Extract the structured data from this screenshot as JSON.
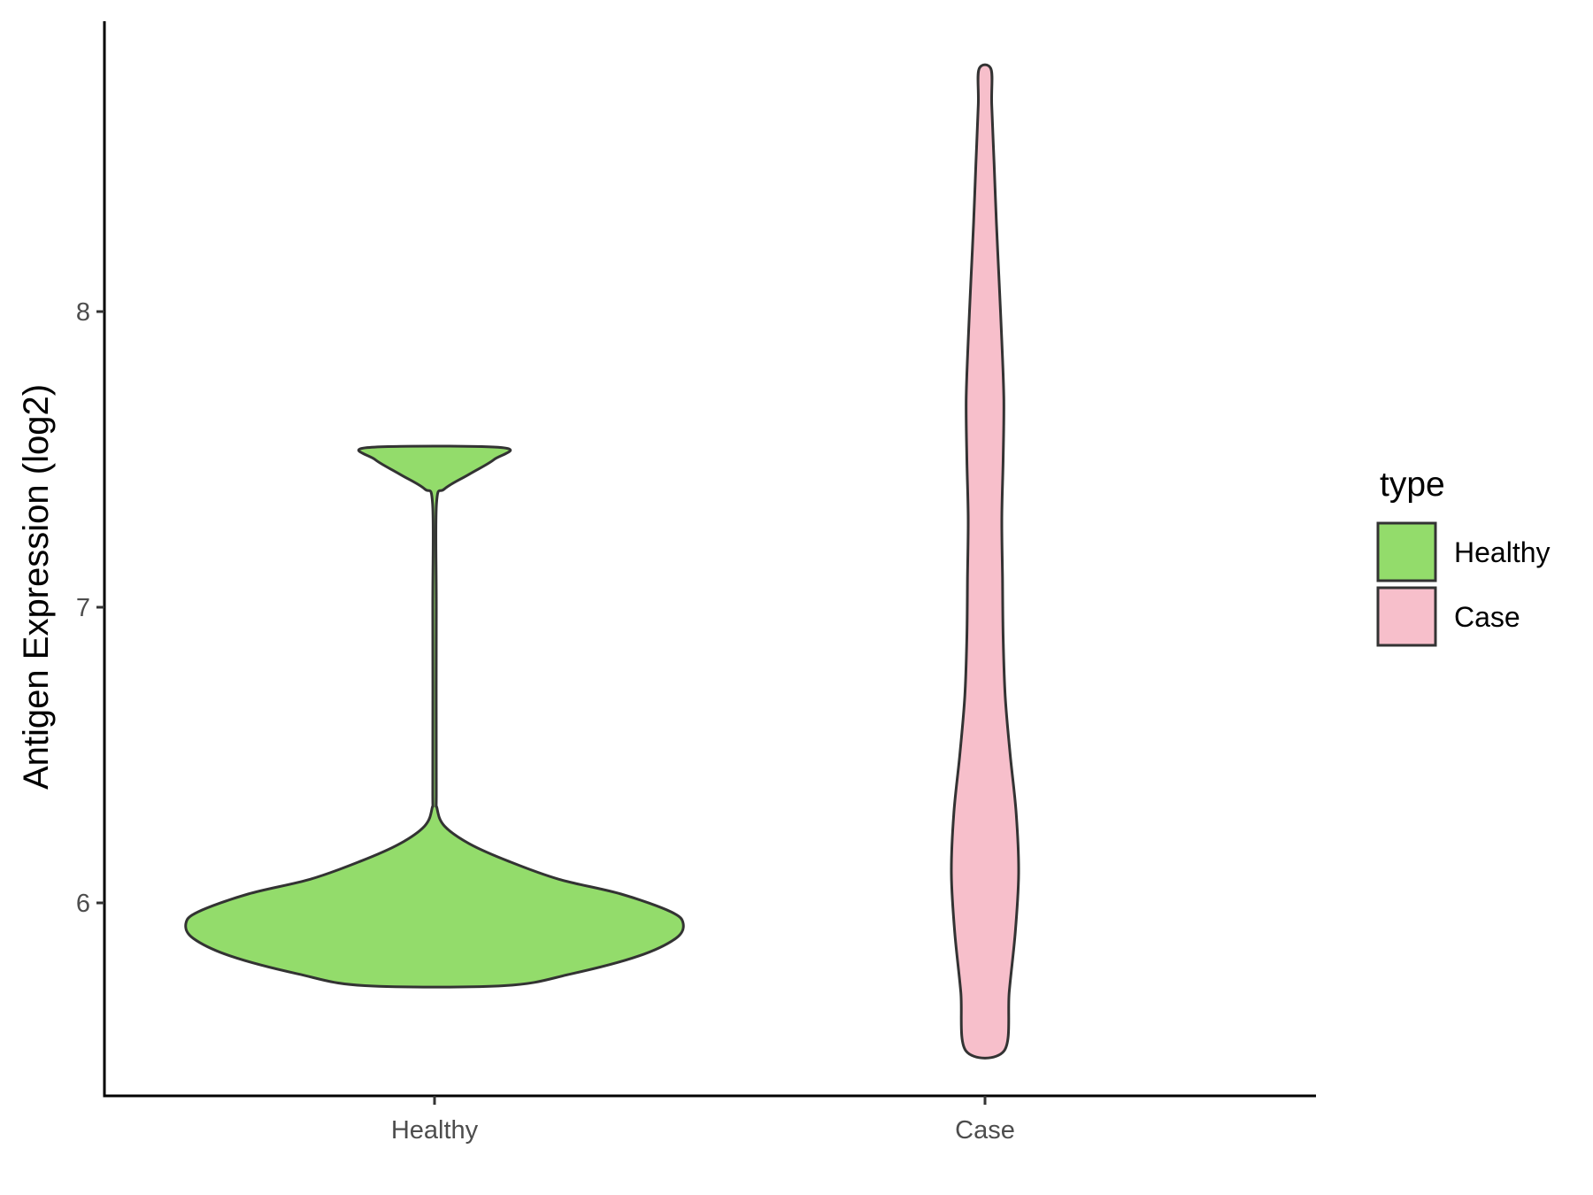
{
  "chart_data": {
    "type": "violin",
    "title": "",
    "xlabel": "",
    "ylabel": "Antigen Expression (log2)",
    "categories": [
      "Healthy",
      "Case"
    ],
    "y_ticks": [
      6,
      7,
      8
    ],
    "ylim": [
      5.45,
      9.05
    ],
    "grid": false,
    "legend": {
      "title": "type",
      "position": "right",
      "entries": [
        {
          "label": "Healthy",
          "color": "#93dc6b"
        },
        {
          "label": "Case",
          "color": "#f7bfcb"
        }
      ]
    },
    "series": [
      {
        "name": "Healthy",
        "color": "#93dc6b",
        "y_min": 5.72,
        "y_max": 7.54,
        "density_profile": [
          [
            5.72,
            0.28
          ],
          [
            5.76,
            0.55
          ],
          [
            5.82,
            0.82
          ],
          [
            5.88,
            0.97
          ],
          [
            5.93,
            1.0
          ],
          [
            5.97,
            0.95
          ],
          [
            6.03,
            0.75
          ],
          [
            6.08,
            0.5
          ],
          [
            6.14,
            0.3
          ],
          [
            6.2,
            0.14
          ],
          [
            6.26,
            0.04
          ],
          [
            6.32,
            0.01
          ],
          [
            6.4,
            0.007
          ],
          [
            7.0,
            0.007
          ],
          [
            7.35,
            0.008
          ],
          [
            7.4,
            0.04
          ],
          [
            7.45,
            0.14
          ],
          [
            7.5,
            0.24
          ],
          [
            7.54,
            0.27
          ]
        ]
      },
      {
        "name": "Case",
        "color": "#f7bfcb",
        "y_min": 5.5,
        "y_max": 8.82,
        "density_profile": [
          [
            5.5,
            0.57
          ],
          [
            5.7,
            0.72
          ],
          [
            5.9,
            0.9
          ],
          [
            6.1,
            1.0
          ],
          [
            6.3,
            0.93
          ],
          [
            6.5,
            0.75
          ],
          [
            6.7,
            0.6
          ],
          [
            6.9,
            0.54
          ],
          [
            7.1,
            0.52
          ],
          [
            7.3,
            0.5
          ],
          [
            7.5,
            0.54
          ],
          [
            7.7,
            0.56
          ],
          [
            7.9,
            0.5
          ],
          [
            8.1,
            0.42
          ],
          [
            8.3,
            0.34
          ],
          [
            8.5,
            0.27
          ],
          [
            8.7,
            0.2
          ],
          [
            8.82,
            0.18
          ]
        ]
      }
    ]
  }
}
